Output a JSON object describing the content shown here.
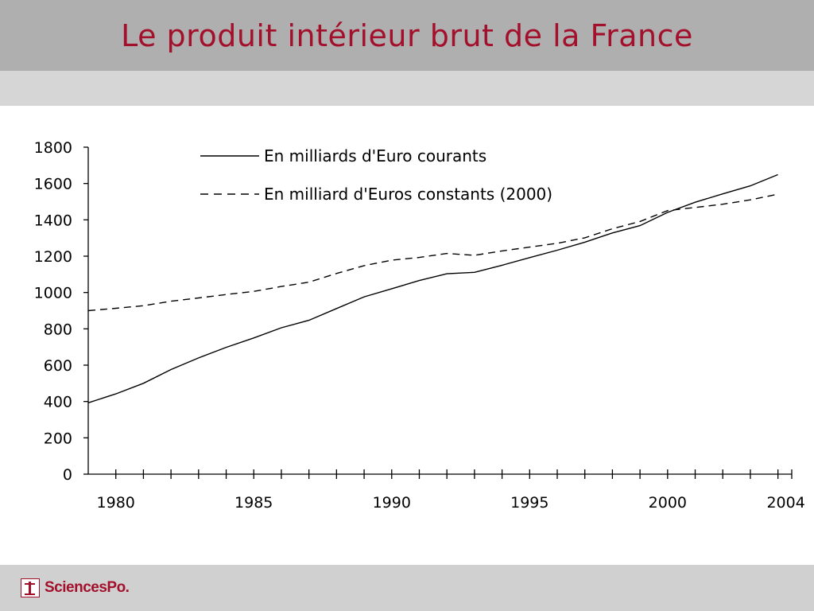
{
  "slide": {
    "title": "Le produit intérieur brut de la France",
    "logo_text": "SciencesPo."
  },
  "colors": {
    "title": "#a3102c",
    "title_band": "#afafaf",
    "sub_band": "#d6d6d6",
    "footer_band": "#d0d0d0",
    "logo": "#a3102c",
    "lines": "#000000"
  },
  "chart_data": {
    "type": "line",
    "title": "",
    "xlabel": "",
    "ylabel": "",
    "xlim": [
      1979,
      2004.5
    ],
    "ylim": [
      0,
      1800
    ],
    "y_ticks": [
      0,
      200,
      400,
      600,
      800,
      1000,
      1200,
      1400,
      1600,
      1800
    ],
    "x_tick_labels": [
      1980,
      1985,
      1990,
      1995,
      2000,
      2004
    ],
    "grid": false,
    "legend": "top-center",
    "x": [
      1979,
      1980,
      1981,
      1982,
      1983,
      1984,
      1985,
      1986,
      1987,
      1988,
      1989,
      1990,
      1991,
      1992,
      1993,
      1994,
      1995,
      1996,
      1997,
      1998,
      1999,
      2000,
      2001,
      2002,
      2003,
      2004
    ],
    "series": [
      {
        "name": "En milliards d'Euro courants",
        "style": "solid",
        "values": [
          393,
          442,
          500,
          576,
          640,
          698,
          750,
          806,
          847,
          912,
          976,
          1021,
          1066,
          1103,
          1111,
          1150,
          1192,
          1233,
          1277,
          1328,
          1368,
          1441,
          1497,
          1543,
          1587,
          1649
        ]
      },
      {
        "name": "En milliard d'Euros constants (2000)",
        "style": "dashed",
        "values": [
          900,
          913,
          927,
          952,
          970,
          989,
          1006,
          1033,
          1057,
          1105,
          1148,
          1178,
          1193,
          1215,
          1205,
          1229,
          1250,
          1271,
          1301,
          1351,
          1391,
          1451,
          1468,
          1486,
          1510,
          1541
        ]
      }
    ]
  }
}
